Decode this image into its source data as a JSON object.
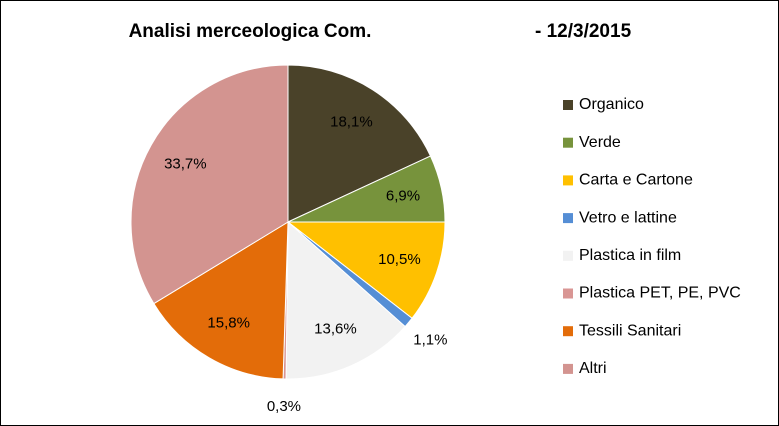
{
  "chart_data": {
    "type": "pie",
    "title": "Analisi merceologica Com.",
    "subtitle": "- 12/3/2015",
    "categories": [
      "Organico",
      "Verde",
      "Carta e Cartone",
      "Vetro e lattine",
      "Plastica  in film",
      "Plastica  PET, PE, PVC",
      "Tessili Sanitari",
      "Altri"
    ],
    "values": [
      18.1,
      6.9,
      10.5,
      1.1,
      13.6,
      0.3,
      15.8,
      33.7
    ],
    "value_labels": [
      "18,1%",
      "6,9%",
      "10,5%",
      "1,1%",
      "13,6%",
      "0,3%",
      "15,8%",
      "33,7%"
    ],
    "colors": [
      "#4a4229",
      "#77933c",
      "#ffc000",
      "#558ed5",
      "#f2f2f2",
      "#d99694",
      "#e36c09",
      "#d39490"
    ],
    "legend": "right"
  }
}
